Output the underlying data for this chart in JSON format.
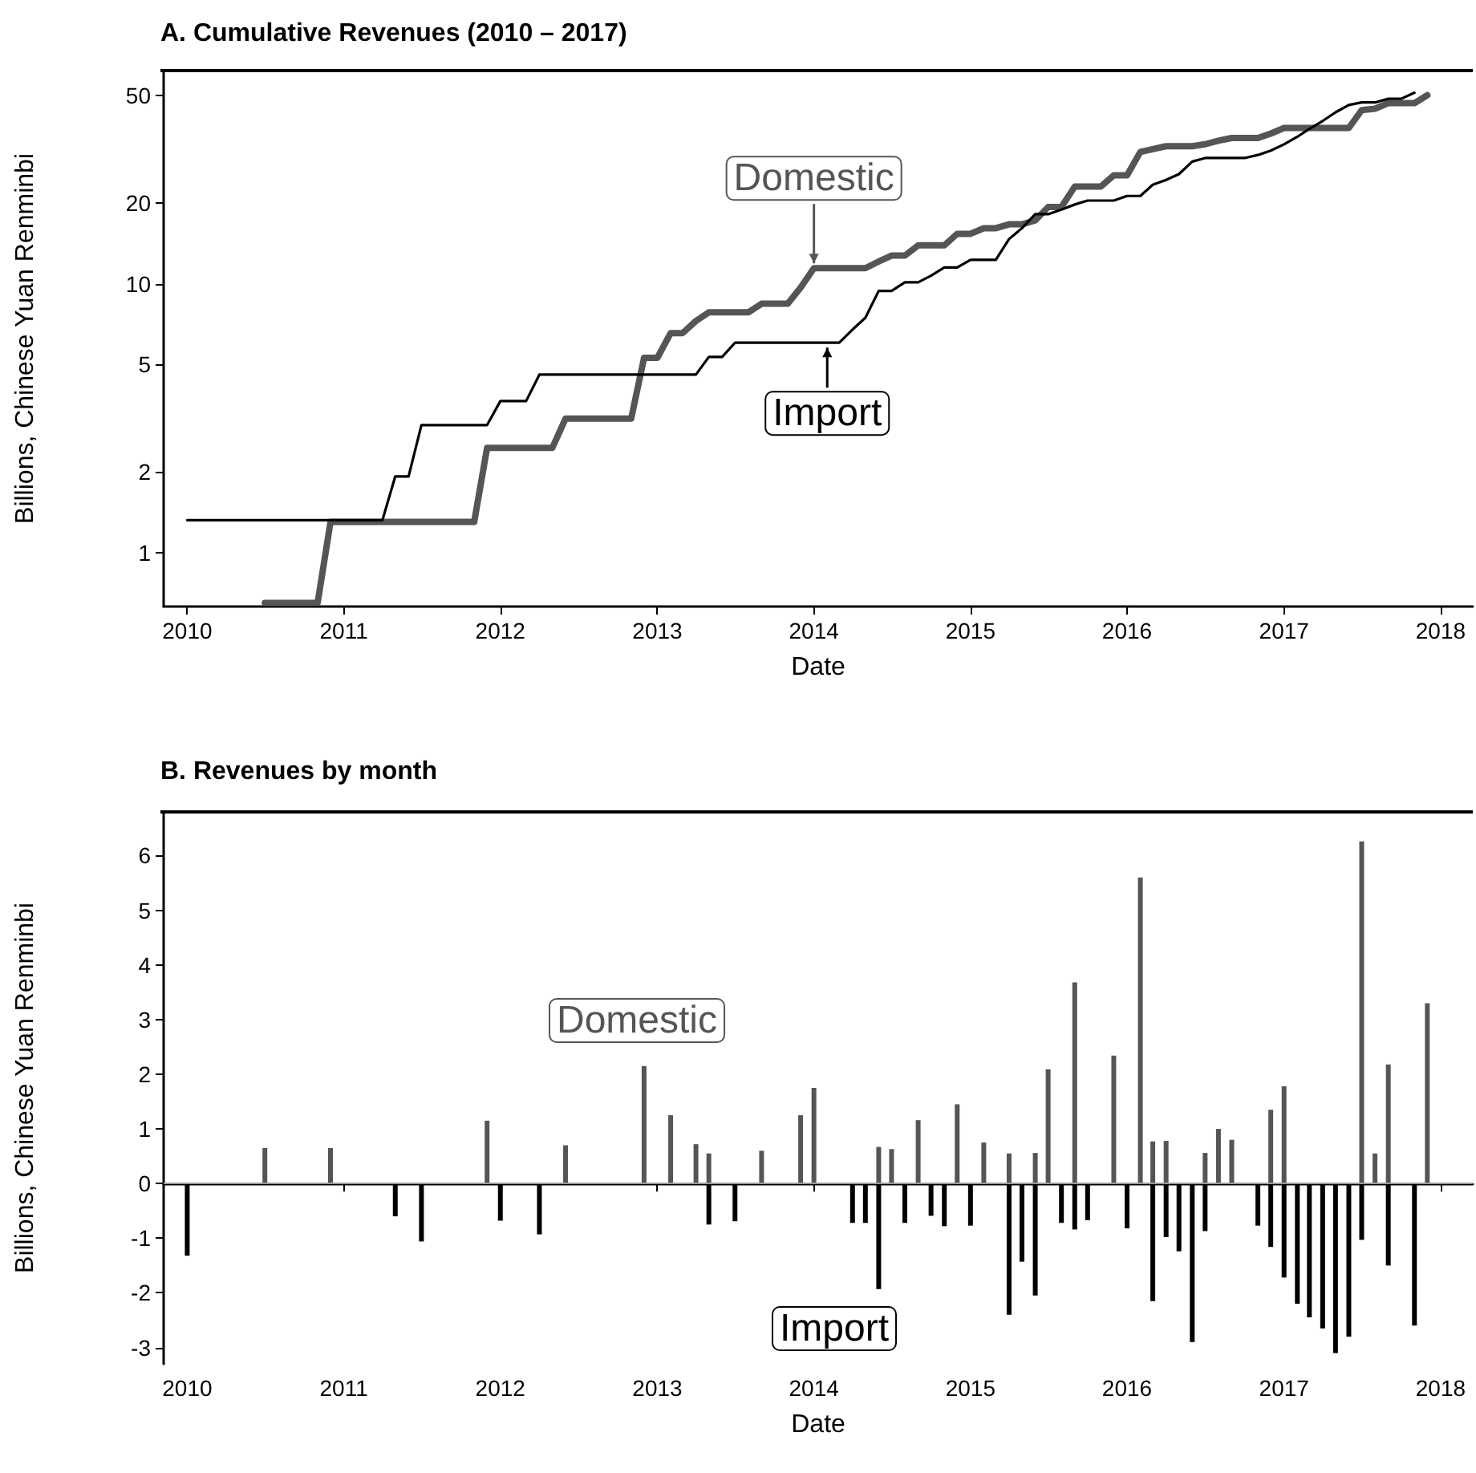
{
  "chart_data": [
    {
      "type": "line",
      "title": "A. Cumulative Revenues (2010 – 2017)",
      "xlabel": "Date",
      "ylabel": "Billions, Chinese Yuan Renminbi",
      "log": "y",
      "grid": false,
      "legend": false,
      "xlim": [
        "2009-11-07",
        "2018-03-17"
      ],
      "xticks": [
        "2010",
        "2011",
        "2012",
        "2013",
        "2014",
        "2015",
        "2016",
        "2017",
        "2018"
      ],
      "ylim": [
        0.63,
        62
      ],
      "yticks": [
        1,
        2,
        5,
        10,
        20,
        50
      ],
      "series": [
        {
          "color": "#555555",
          "x": [
            "2010-07",
            "2010-11",
            "2010-12",
            "2011-11",
            "2011-12",
            "2012-05",
            "2012-06",
            "2012-11",
            "2012-12",
            "2013-01",
            "2013-02",
            "2013-03",
            "2013-04",
            "2013-05",
            "2013-08",
            "2013-09",
            "2013-11",
            "2013-12",
            "2014-01",
            "2014-05",
            "2014-06",
            "2014-07",
            "2014-08",
            "2014-09",
            "2014-11",
            "2014-12",
            "2015-01",
            "2015-02",
            "2015-03",
            "2015-04",
            "2015-05",
            "2015-06",
            "2015-07",
            "2015-08",
            "2015-09",
            "2015-11",
            "2015-12",
            "2016-01",
            "2016-02",
            "2016-03",
            "2016-04",
            "2016-06",
            "2016-07",
            "2016-08",
            "2016-09",
            "2016-11",
            "2016-12",
            "2017-01",
            "2017-06",
            "2017-07",
            "2017-08",
            "2017-09",
            "2017-11",
            "2017-12"
          ],
          "values": [
            0.65,
            0.65,
            1.3,
            1.3,
            2.45,
            2.45,
            3.15,
            3.15,
            5.3,
            5.3,
            6.55,
            6.55,
            7.27,
            7.82,
            7.82,
            8.42,
            8.42,
            9.67,
            11.42,
            11.42,
            12.09,
            12.72,
            12.72,
            13.88,
            13.88,
            15.33,
            15.33,
            16.08,
            16.08,
            16.63,
            16.63,
            17.19,
            19.28,
            19.28,
            22.96,
            22.96,
            25.3,
            25.3,
            30.9,
            31.67,
            32.45,
            32.45,
            33.01,
            34.01,
            34.81,
            34.81,
            36.16,
            37.94,
            37.94,
            44.2,
            44.75,
            46.93,
            46.93,
            50.23
          ]
        },
        {
          "color": "#000000",
          "x": [
            "2010-01",
            "2011-04",
            "2011-05",
            "2011-06",
            "2011-07",
            "2011-12",
            "2012-01",
            "2012-03",
            "2012-04",
            "2013-04",
            "2013-05",
            "2013-06",
            "2013-07",
            "2014-03",
            "2014-04",
            "2014-05",
            "2014-06",
            "2014-07",
            "2014-08",
            "2014-09",
            "2014-10",
            "2014-11",
            "2014-12",
            "2015-01",
            "2015-03",
            "2015-04",
            "2015-05",
            "2015-06",
            "2015-07",
            "2015-08",
            "2015-09",
            "2015-10",
            "2015-12",
            "2016-01",
            "2016-02",
            "2016-03",
            "2016-04",
            "2016-05",
            "2016-06",
            "2016-07",
            "2016-10",
            "2016-11",
            "2016-12",
            "2017-01",
            "2017-02",
            "2017-03",
            "2017-04",
            "2017-05",
            "2017-06",
            "2017-07",
            "2017-08",
            "2017-09",
            "2017-10",
            "2017-11"
          ],
          "values": [
            1.32,
            1.32,
            1.92,
            1.92,
            2.98,
            2.98,
            3.66,
            3.66,
            4.59,
            4.59,
            5.34,
            5.34,
            6.03,
            6.03,
            6.75,
            7.47,
            9.4,
            9.4,
            10.12,
            10.12,
            10.71,
            11.49,
            11.49,
            12.26,
            12.26,
            14.66,
            16.09,
            18.14,
            18.14,
            18.86,
            19.7,
            20.37,
            20.37,
            21.19,
            21.19,
            23.34,
            24.32,
            25.56,
            28.46,
            29.33,
            29.33,
            30.1,
            31.26,
            32.98,
            35.18,
            37.63,
            40.28,
            43.38,
            46.18,
            47.21,
            47.21,
            48.71,
            48.71,
            51.31
          ]
        }
      ],
      "annotations": [
        {
          "text": "Domestic",
          "x": "2014-01",
          "y": 11.42
        },
        {
          "text": "Import",
          "x": "2014-02",
          "y": 6.03
        }
      ]
    },
    {
      "type": "bar",
      "title": "B. Revenues by month",
      "xlabel": "Date",
      "ylabel": "Billions, Chinese Yuan Renminbi",
      "grid": false,
      "legend": false,
      "xlim": [
        "2009-11-07",
        "2018-03-17"
      ],
      "xticks": [
        "2010",
        "2011",
        "2012",
        "2013",
        "2014",
        "2015",
        "2016",
        "2017",
        "2018"
      ],
      "ylim": [
        -3.3,
        6.8
      ],
      "yticks": [
        -3,
        -2,
        -1,
        0,
        1,
        2,
        3,
        4,
        5,
        6
      ],
      "ref_lines": [
        {
          "axis": "y",
          "value": 0,
          "color": "#999999"
        }
      ],
      "series": [
        {
          "name": "Domestic",
          "color": "#555555",
          "x": [
            "2010-07",
            "2010-12",
            "2011-12",
            "2012-06",
            "2012-12",
            "2013-02",
            "2013-04",
            "2013-05",
            "2013-09",
            "2013-12",
            "2014-01",
            "2014-06",
            "2014-07",
            "2014-09",
            "2014-12",
            "2015-02",
            "2015-04",
            "2015-06",
            "2015-07",
            "2015-09",
            "2015-12",
            "2016-02",
            "2016-03",
            "2016-04",
            "2016-07",
            "2016-08",
            "2016-09",
            "2016-12",
            "2017-01",
            "2017-07",
            "2017-08",
            "2017-09",
            "2017-12"
          ],
          "values": [
            0.65,
            0.65,
            1.15,
            0.7,
            2.15,
            1.25,
            0.72,
            0.55,
            0.6,
            1.25,
            1.75,
            0.67,
            0.63,
            1.16,
            1.45,
            0.75,
            0.55,
            0.56,
            2.09,
            3.68,
            2.34,
            5.6,
            0.77,
            0.78,
            0.56,
            1.0,
            0.8,
            1.35,
            1.78,
            6.26,
            0.55,
            2.18,
            3.3
          ]
        },
        {
          "name": "Import",
          "color": "#000000",
          "x": [
            "2010-01",
            "2011-05",
            "2011-07",
            "2012-01",
            "2012-04",
            "2013-05",
            "2013-07",
            "2014-04",
            "2014-05",
            "2014-06",
            "2014-08",
            "2014-10",
            "2014-11",
            "2015-01",
            "2015-04",
            "2015-05",
            "2015-06",
            "2015-08",
            "2015-09",
            "2015-10",
            "2016-01",
            "2016-03",
            "2016-04",
            "2016-05",
            "2016-06",
            "2016-07",
            "2016-11",
            "2016-12",
            "2017-01",
            "2017-02",
            "2017-03",
            "2017-04",
            "2017-05",
            "2017-06",
            "2017-07",
            "2017-09",
            "2017-11"
          ],
          "values": [
            -1.32,
            -0.6,
            -1.06,
            -0.68,
            -0.93,
            -0.75,
            -0.69,
            -0.72,
            -0.72,
            -1.93,
            -0.72,
            -0.59,
            -0.78,
            -0.77,
            -2.4,
            -1.43,
            -2.05,
            -0.72,
            -0.84,
            -0.67,
            -0.82,
            -2.15,
            -0.98,
            -1.24,
            -2.9,
            -0.87,
            -0.77,
            -1.16,
            -1.72,
            -2.2,
            -2.45,
            -2.65,
            -3.1,
            -2.8,
            -1.03,
            -1.5,
            -2.6
          ]
        }
      ]
    }
  ]
}
